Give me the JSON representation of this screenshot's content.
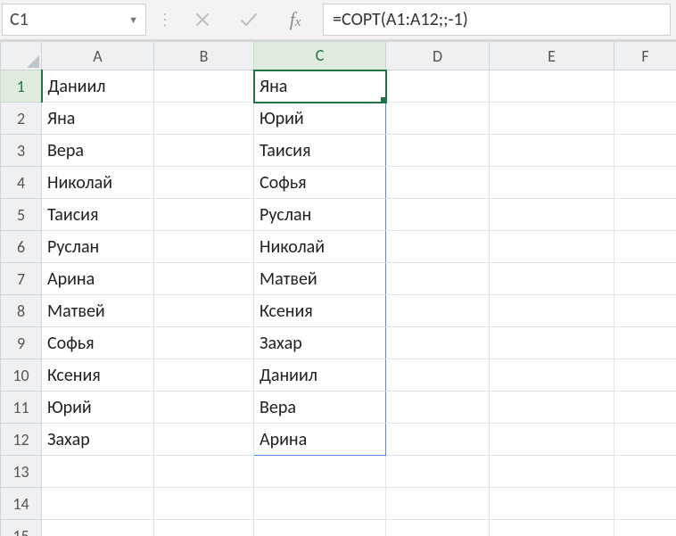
{
  "formula_bar": {
    "name_box_value": "C1",
    "formula_value": "=СОРТ(A1:A12;;-1)"
  },
  "colors": {
    "selection_border": "#217346",
    "spill_border": "#4a86e8",
    "header_bg": "#eef0f2",
    "header_border": "#d0d3d7",
    "grid_line": "#e2e4e7",
    "app_bg": "#f3f3f3"
  },
  "columns": [
    "A",
    "B",
    "C",
    "D",
    "E",
    "F"
  ],
  "active_cell": "C1",
  "spill_range": "C1:C12",
  "row_count": 15,
  "data": {
    "A": [
      "Даниил",
      "Яна",
      "Вера",
      "Николай",
      "Таисия",
      "Руслан",
      "Арина",
      "Матвей",
      "Софья",
      "Ксения",
      "Юрий",
      "Захар"
    ],
    "C": [
      "Яна",
      "Юрий",
      "Таисия",
      "Софья",
      "Руслан",
      "Николай",
      "Матвей",
      "Ксения",
      "Захар",
      "Даниил",
      "Вера",
      "Арина"
    ]
  }
}
